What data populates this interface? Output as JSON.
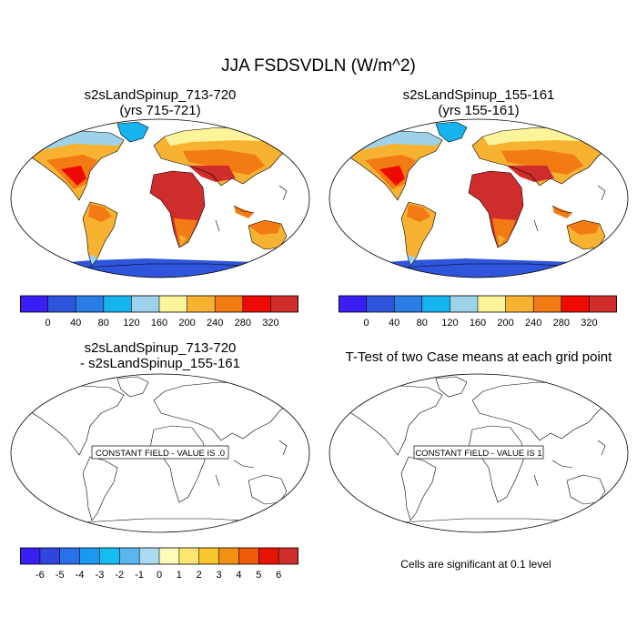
{
  "main_title": "JJA FSDSVDLN (W/m^2)",
  "panels": [
    {
      "title1": "s2sLandSpinup_713-720",
      "title2": "(yrs 715-721)"
    },
    {
      "title1": "s2sLandSpinup_155-161",
      "title2": "(yrs 155-161)"
    },
    {
      "title1": "s2sLandSpinup_713-720",
      "title2": "- s2sLandSpinup_155-161",
      "constant_label": "CONSTANT FIELD - VALUE IS .0"
    },
    {
      "title1": "T-Test of two Case means at each grid point",
      "constant_label": "CONSTANT FIELD - VALUE IS 1"
    }
  ],
  "colorbar_top": {
    "labels": [
      "0",
      "40",
      "80",
      "120",
      "160",
      "200",
      "240",
      "280",
      "320"
    ],
    "colors": [
      "#3a1ff5",
      "#2f55dc",
      "#2b7de6",
      "#16b3ef",
      "#9ed2ea",
      "#fcf49a",
      "#f7b232",
      "#f27b14",
      "#ee0a04",
      "#cf2c2c"
    ]
  },
  "colorbar_diff": {
    "labels": [
      "-6",
      "-5",
      "-4",
      "-3",
      "-2",
      "-1",
      "0",
      "1",
      "2",
      "3",
      "4",
      "5",
      "6"
    ],
    "colors": [
      "#3a1ff5",
      "#2f45dc",
      "#2870e6",
      "#1b98ef",
      "#18bbf0",
      "#5ab6ec",
      "#a9daf4",
      "#fffbb8",
      "#fde66f",
      "#f9c42e",
      "#f39115",
      "#f05b0a",
      "#e51604",
      "#cf2c2c"
    ]
  },
  "footnote": "Cells are significant at 0.1 level"
}
